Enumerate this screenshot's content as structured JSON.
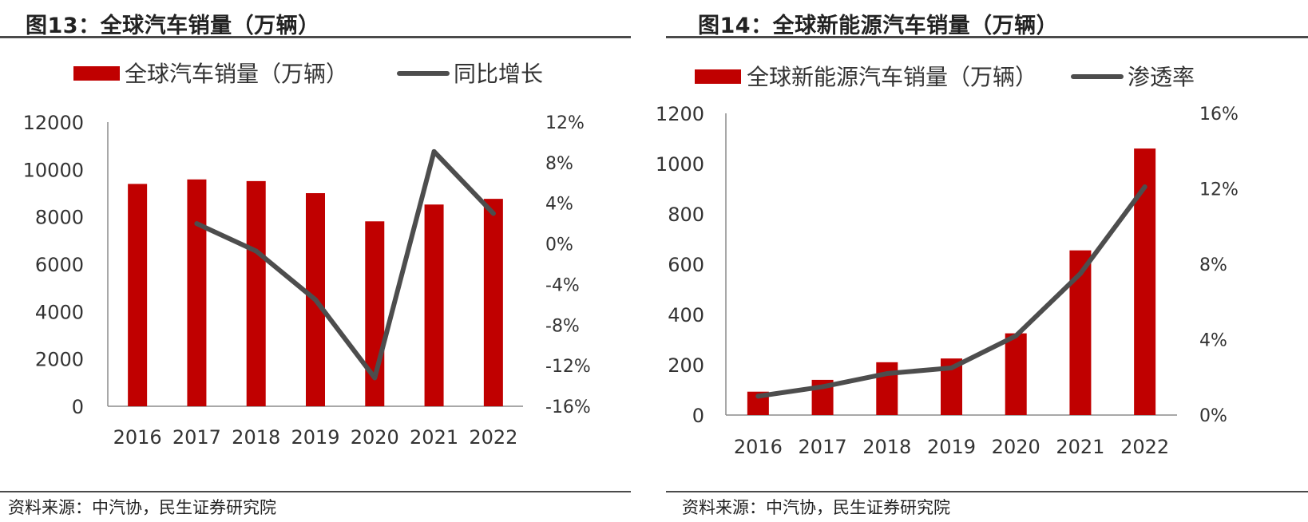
{
  "colors": {
    "bar": "#c00000",
    "line": "#4d4d4d",
    "axis": "#595959",
    "text": "#333333"
  },
  "figures": [
    {
      "title": "图13：全球汽车销量（万辆）",
      "source": "资料来源：中汽协，民生证券研究院"
    },
    {
      "title": "图14：全球新能源汽车销量（万辆）",
      "source": "资料来源：中汽协，民生证券研究院"
    }
  ],
  "chart_data": [
    {
      "type": "bar",
      "categories": [
        "2016",
        "2017",
        "2018",
        "2019",
        "2020",
        "2021",
        "2022"
      ],
      "series": [
        {
          "name": "全球汽车销量（万辆）",
          "type": "bar",
          "axis": "left",
          "values": [
            9390,
            9580,
            9510,
            9000,
            7810,
            8520,
            8760
          ]
        },
        {
          "name": "同比增长",
          "type": "line",
          "axis": "right",
          "values": [
            null,
            2.0,
            -0.7,
            -5.5,
            -13.2,
            9.1,
            3.0
          ]
        }
      ],
      "ylim_left": [
        0,
        12000
      ],
      "yticks_left": [
        "0",
        "2000",
        "4000",
        "6000",
        "8000",
        "10000",
        "12000"
      ],
      "ylim_right": [
        -16,
        12
      ],
      "yticks_right": [
        "-16%",
        "-12%",
        "-8%",
        "-4%",
        "0%",
        "4%",
        "8%",
        "12%"
      ],
      "legend_position": "top",
      "grid": false
    },
    {
      "type": "bar",
      "categories": [
        "2016",
        "2017",
        "2018",
        "2019",
        "2020",
        "2021",
        "2022"
      ],
      "series": [
        {
          "name": "全球新能源汽车销量（万辆）",
          "type": "bar",
          "axis": "left",
          "values": [
            93,
            140,
            210,
            225,
            325,
            655,
            1060
          ]
        },
        {
          "name": "渗透率",
          "type": "line",
          "axis": "right",
          "values": [
            1.0,
            1.5,
            2.2,
            2.5,
            4.2,
            7.5,
            12.1
          ]
        }
      ],
      "ylim_left": [
        0,
        1200
      ],
      "yticks_left": [
        "0",
        "200",
        "400",
        "600",
        "800",
        "1000",
        "1200"
      ],
      "ylim_right": [
        0,
        16
      ],
      "yticks_right": [
        "0%",
        "4%",
        "8%",
        "12%",
        "16%"
      ],
      "legend_position": "top",
      "grid": false
    }
  ]
}
